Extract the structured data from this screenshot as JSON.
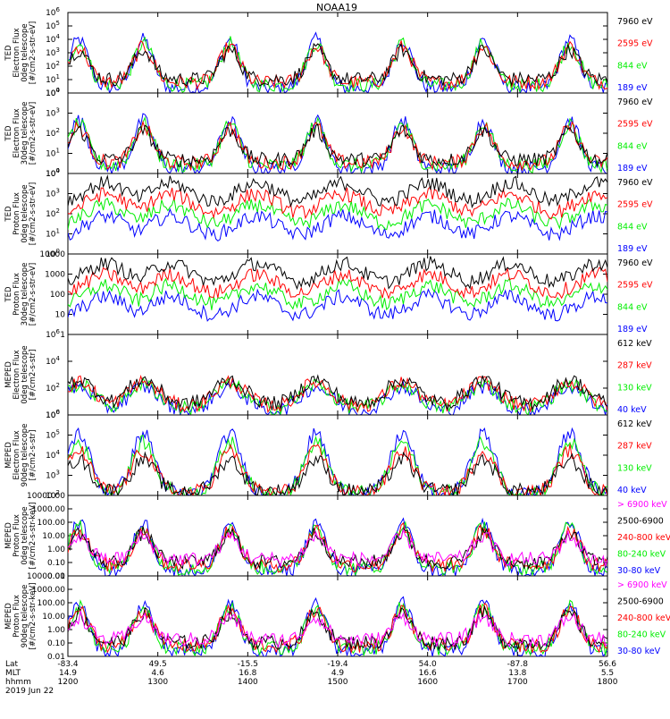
{
  "page": {
    "title": "NOAA19"
  },
  "colors": {
    "black": "#000000",
    "red": "#ff0000",
    "green": "#00ee00",
    "blue": "#0000ff",
    "magenta": "#ff00ff"
  },
  "chart_data": {
    "type": "line",
    "title": "NOAA19",
    "x_axis": {
      "ticks": [
        "1200",
        "1300",
        "1400",
        "1500",
        "1600",
        "1700",
        "1800"
      ],
      "rows": [
        {
          "label": "Lat",
          "values": [
            "-83.4",
            "49.5",
            "-15.5",
            "-19.4",
            "54.0",
            "-87.8",
            "56.6"
          ]
        },
        {
          "label": "MLT",
          "values": [
            "14.9",
            "4.6",
            "16.8",
            "4.9",
            "16.6",
            "13.8",
            "5.5"
          ]
        },
        {
          "label": "hhmm",
          "values": [
            "1200",
            "1300",
            "1400",
            "1500",
            "1600",
            "1700",
            "1800"
          ]
        }
      ],
      "date": "2019 Jun 22"
    },
    "panels": [
      {
        "ylabel": [
          "TED",
          "Electron Flux",
          "0deg telescope",
          "[#/cm2-s-str-eV]"
        ],
        "y_scale": "log",
        "ylim": [
          1,
          1000000
        ],
        "y_ticks": [
          "10",
          "10",
          "10",
          "10",
          "10",
          "10",
          "10"
        ],
        "y_tick_exponents": [
          "0",
          "1",
          "2",
          "3",
          "4",
          "5",
          "6"
        ],
        "legend": [
          {
            "label": "7960 eV",
            "color": "black"
          },
          {
            "label": "2595 eV",
            "color": "red"
          },
          {
            "label": "844 eV",
            "color": "green"
          },
          {
            "label": "189 eV",
            "color": "blue"
          }
        ]
      },
      {
        "ylabel": [
          "TED",
          "Electron Flux",
          "30deg telescope",
          "[#/cm2-s-str-eV]"
        ],
        "y_scale": "log",
        "ylim": [
          1,
          100000
        ],
        "y_ticks": [
          "10",
          "10",
          "10",
          "10",
          "10"
        ],
        "y_tick_exponents": [
          "0",
          "1",
          "2",
          "3",
          "4"
        ],
        "legend": [
          {
            "label": "7960 eV",
            "color": "black"
          },
          {
            "label": "2595 eV",
            "color": "red"
          },
          {
            "label": "844 eV",
            "color": "green"
          },
          {
            "label": "189 eV",
            "color": "blue"
          }
        ]
      },
      {
        "ylabel": [
          "TED",
          "Proton Flux",
          "0deg telescope",
          "[#/cm2-s-str-eV]"
        ],
        "y_scale": "log",
        "ylim": [
          1,
          100000
        ],
        "y_ticks": [
          "10",
          "10",
          "10",
          "10",
          "10"
        ],
        "y_tick_exponents": [
          "0",
          "1",
          "2",
          "3",
          "4"
        ],
        "legend": [
          {
            "label": "7960 eV",
            "color": "black"
          },
          {
            "label": "2595 eV",
            "color": "red"
          },
          {
            "label": "844 eV",
            "color": "green"
          },
          {
            "label": "189 eV",
            "color": "blue"
          }
        ]
      },
      {
        "ylabel": [
          "TED",
          "Proton Flux",
          "30deg telescope",
          "[#/cm2-s-str-eV]"
        ],
        "y_scale": "log",
        "ylim": [
          1,
          10000
        ],
        "y_ticks": [
          "1",
          "10",
          "100",
          "1000",
          "10000"
        ],
        "legend": [
          {
            "label": "7960 eV",
            "color": "black"
          },
          {
            "label": "2595 eV",
            "color": "red"
          },
          {
            "label": "844 eV",
            "color": "green"
          },
          {
            "label": "189 eV",
            "color": "blue"
          }
        ]
      },
      {
        "ylabel": [
          "MEPED",
          "Electron Flux",
          "0deg telescope",
          "[#/cm2-s-str]"
        ],
        "y_scale": "log",
        "ylim": [
          1,
          10000000
        ],
        "y_ticks": [
          "10",
          "10",
          "10",
          "10"
        ],
        "y_tick_exponents": [
          "0",
          "2",
          "4",
          "6"
        ],
        "legend": [
          {
            "label": "612 keV",
            "color": "black"
          },
          {
            "label": "287 keV",
            "color": "red"
          },
          {
            "label": "130 keV",
            "color": "green"
          },
          {
            "label": "40 keV",
            "color": "blue"
          }
        ]
      },
      {
        "ylabel": [
          "MEPED",
          "Electron Flux",
          "90deg telescope",
          "[#/cm2-s-str]"
        ],
        "y_scale": "log",
        "ylim": [
          100,
          1000000
        ],
        "y_ticks": [
          "10",
          "10",
          "10",
          "10",
          "10"
        ],
        "y_tick_exponents": [
          "2",
          "3",
          "4",
          "5",
          "6"
        ],
        "legend": [
          {
            "label": "612 keV",
            "color": "black"
          },
          {
            "label": "287 keV",
            "color": "red"
          },
          {
            "label": "130 keV",
            "color": "green"
          },
          {
            "label": "40 keV",
            "color": "blue"
          }
        ]
      },
      {
        "ylabel": [
          "MEPED",
          "Proton Flux",
          "0deg telescope",
          "[#/cm2-s-str-keV]"
        ],
        "y_scale": "log",
        "ylim": [
          0.01,
          10000
        ],
        "y_ticks": [
          "0.01",
          "0.10",
          "1.00",
          "10.00",
          "100.00",
          "1000.00",
          "10000.00"
        ],
        "legend": [
          {
            "label": "> 6900 keV",
            "color": "magenta"
          },
          {
            "label": "2500-6900",
            "color": "black"
          },
          {
            "label": "240-800 keV",
            "color": "red"
          },
          {
            "label": "80-240 keV",
            "color": "green"
          },
          {
            "label": "30-80 keV",
            "color": "blue"
          }
        ]
      },
      {
        "ylabel": [
          "MEPED",
          "Proton Flux",
          "90deg telescope",
          "[#/cm2-s-str-keV]"
        ],
        "y_scale": "log",
        "ylim": [
          0.01,
          10000
        ],
        "y_ticks": [
          "0.01",
          "0.10",
          "1.00",
          "10.00",
          "100.00",
          "1000.00",
          "10000.00"
        ],
        "legend": [
          {
            "label": "> 6900 keV",
            "color": "magenta"
          },
          {
            "label": "2500-6900",
            "color": "black"
          },
          {
            "label": "240-800 keV",
            "color": "red"
          },
          {
            "label": "80-240 keV",
            "color": "green"
          },
          {
            "label": "30-80 keV",
            "color": "blue"
          }
        ]
      }
    ]
  }
}
